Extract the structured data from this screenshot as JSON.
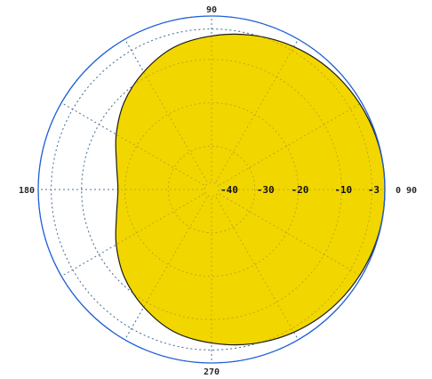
{
  "chart_data": {
    "type": "polar",
    "angle_labels": [
      {
        "deg": 0,
        "text": "0 90"
      },
      {
        "deg": 90,
        "text": "90"
      },
      {
        "deg": 180,
        "text": "180"
      },
      {
        "deg": 270,
        "text": "270"
      }
    ],
    "db_labels": [
      "-40",
      "-30",
      "-20",
      "-10",
      "-3"
    ],
    "db_rings": [
      -40,
      -30,
      -20,
      -10,
      -3,
      0
    ],
    "r_range": [
      -40,
      0
    ],
    "grid": true,
    "spoke_step_deg": 30,
    "pattern": {
      "angles_deg": [
        0,
        15,
        30,
        45,
        60,
        75,
        90,
        105,
        120,
        135,
        150,
        165,
        180,
        195,
        210,
        225,
        240,
        255,
        270,
        285,
        300,
        315,
        330,
        345
      ],
      "gain_db": [
        0,
        -0.1,
        -0.5,
        -1.1,
        -2.0,
        -3.2,
        -4.6,
        -6.1,
        -8.7,
        -11.5,
        -14.6,
        -17.3,
        -18.4,
        -17.3,
        -14.6,
        -11.5,
        -8.7,
        -6.1,
        -4.6,
        -3.2,
        -2.0,
        -1.1,
        -0.5,
        -0.1
      ]
    },
    "colors": {
      "fill": "#f2d600",
      "outline": "#1a1a1a",
      "outer_circle": "#1f5fd6",
      "grid": "#2f6fe0"
    }
  }
}
